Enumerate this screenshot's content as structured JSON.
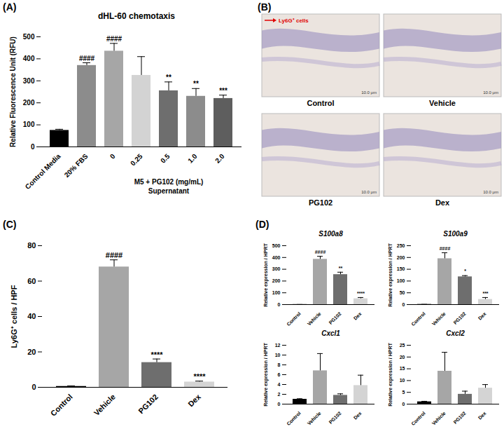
{
  "chart_data": [
    {
      "type": "bar",
      "panel": "(A)",
      "title": "dHL-60 chemotaxis",
      "categories": [
        "Control Media",
        "20% FBS",
        "0",
        "0.25",
        "0.5",
        "1.0",
        "2.0"
      ],
      "values": [
        75,
        370,
        435,
        325,
        255,
        230,
        220
      ],
      "errors": [
        5,
        12,
        35,
        85,
        40,
        35,
        15
      ],
      "significance": [
        null,
        "####",
        "####",
        null,
        "**",
        "**",
        "***"
      ],
      "colors": [
        "#000000",
        "#8c8c8c",
        "#a6a6a6",
        "#d3d3d3",
        "#6e6e6e",
        "#8c8c8c",
        "#5e5e5e"
      ],
      "group": {
        "label": "M5 + PG102 (mg/mL)",
        "sublabel": "Supernatant",
        "categories": [
          "0",
          "0.25",
          "0.5",
          "1.0",
          "2.0"
        ]
      },
      "ylabel": "Relative Fluorescence Unit (RFU)",
      "ylim": [
        0,
        500
      ],
      "yticks": [
        0,
        100,
        200,
        300,
        400,
        500
      ]
    },
    {
      "type": "image",
      "panel": "(B)",
      "annotation": "Ly6G⁺ cells",
      "panels": [
        "Control",
        "Vehicle",
        "PG102",
        "Dex"
      ],
      "scale_bar": "10.0 μm"
    },
    {
      "type": "bar",
      "panel": "(C)",
      "categories": [
        "Control",
        "Vehicle",
        "PG102",
        "Dex"
      ],
      "values": [
        0.5,
        68,
        14,
        3
      ],
      "errors": [
        0.3,
        4,
        2,
        0.5
      ],
      "significance": [
        null,
        "####",
        "****",
        "****"
      ],
      "colors": [
        "#000000",
        "#a6a6a6",
        "#6e6e6e",
        "#d4d4d4"
      ],
      "ylabel": "Ly6G⁺ cells / HPF",
      "ylim": [
        0,
        80
      ],
      "yticks": [
        0,
        20,
        40,
        60,
        80
      ]
    },
    {
      "type": "bar_grid",
      "panel": "(D)",
      "categories": [
        "Control",
        "Vehicle",
        "PG102",
        "Dex"
      ],
      "colors": [
        "#000000",
        "#a6a6a6",
        "#6e6e6e",
        "#d4d4d4"
      ],
      "ylabel": "Relative expression / HPRT",
      "charts": [
        {
          "title": "S100a8",
          "values": [
            1,
            385,
            255,
            50
          ],
          "errors": [
            0,
            25,
            20,
            10
          ],
          "significance": [
            null,
            "####",
            "**",
            "****"
          ],
          "ylim": [
            0,
            500
          ],
          "yticks": [
            0,
            100,
            200,
            300,
            400,
            500
          ]
        },
        {
          "title": "S100a9",
          "values": [
            1,
            195,
            118,
            22
          ],
          "errors": [
            0,
            25,
            5,
            8
          ],
          "significance": [
            null,
            "####",
            "*",
            "***"
          ],
          "ylim": [
            0,
            250
          ],
          "yticks": [
            0,
            50,
            100,
            150,
            200,
            250
          ]
        },
        {
          "title": "Cxcl1",
          "values": [
            1,
            6.8,
            1.8,
            3.8
          ],
          "errors": [
            0.1,
            3.5,
            0.3,
            2.1
          ],
          "significance": [
            null,
            null,
            null,
            null
          ],
          "ylim": [
            0,
            12
          ],
          "yticks": [
            0,
            2,
            4,
            6,
            8,
            10,
            12
          ]
        },
        {
          "title": "Cxcl2",
          "values": [
            1,
            14,
            4.2,
            6.8
          ],
          "errors": [
            0.2,
            8,
            1.3,
            1.5
          ],
          "significance": [
            null,
            null,
            null,
            null
          ],
          "ylim": [
            0,
            25
          ],
          "yticks": [
            0,
            5,
            10,
            15,
            20,
            25
          ]
        }
      ]
    }
  ]
}
